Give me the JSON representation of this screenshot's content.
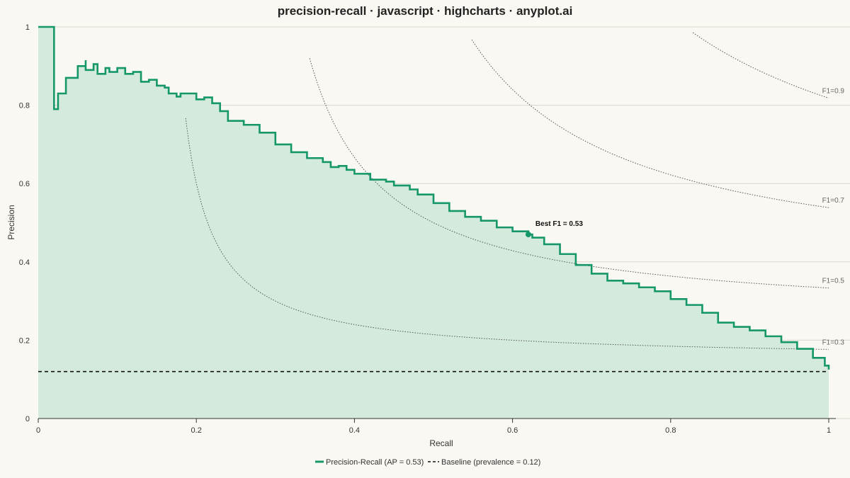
{
  "chart_data": {
    "type": "line",
    "title": "precision-recall · javascript · highcharts · anyplot.ai",
    "xlabel": "Recall",
    "ylabel": "Precision",
    "xlim": [
      0,
      1
    ],
    "ylim": [
      0,
      1
    ],
    "x_ticks": [
      "0",
      "0.2",
      "0.4",
      "0.6",
      "0.8",
      "1"
    ],
    "y_ticks": [
      "0",
      "0.2",
      "0.4",
      "0.6",
      "0.8",
      "1"
    ],
    "grid": "horizontal",
    "legend_position": "bottom-center",
    "colors": {
      "curve": "#15976a",
      "fill": "#d3eadc",
      "baseline": "#111111",
      "iso": "#555555",
      "background": "#faf8f2"
    },
    "series": [
      {
        "name": "Precision-Recall (AP = 0.53)",
        "points": [
          [
            0,
            1
          ],
          [
            0.02,
            1
          ],
          [
            0.02,
            0.79
          ],
          [
            0.025,
            0.83
          ],
          [
            0.035,
            0.87
          ],
          [
            0.05,
            0.9
          ],
          [
            0.06,
            0.915
          ],
          [
            0.06,
            0.89
          ],
          [
            0.07,
            0.905
          ],
          [
            0.075,
            0.88
          ],
          [
            0.085,
            0.895
          ],
          [
            0.09,
            0.885
          ],
          [
            0.1,
            0.895
          ],
          [
            0.11,
            0.88
          ],
          [
            0.12,
            0.885
          ],
          [
            0.13,
            0.86
          ],
          [
            0.14,
            0.865
          ],
          [
            0.15,
            0.85
          ],
          [
            0.16,
            0.845
          ],
          [
            0.165,
            0.83
          ],
          [
            0.175,
            0.822
          ],
          [
            0.18,
            0.83
          ],
          [
            0.2,
            0.815
          ],
          [
            0.21,
            0.82
          ],
          [
            0.22,
            0.805
          ],
          [
            0.23,
            0.785
          ],
          [
            0.24,
            0.76
          ],
          [
            0.26,
            0.75
          ],
          [
            0.28,
            0.73
          ],
          [
            0.3,
            0.7
          ],
          [
            0.32,
            0.68
          ],
          [
            0.34,
            0.665
          ],
          [
            0.36,
            0.655
          ],
          [
            0.37,
            0.642
          ],
          [
            0.38,
            0.645
          ],
          [
            0.39,
            0.635
          ],
          [
            0.4,
            0.625
          ],
          [
            0.42,
            0.61
          ],
          [
            0.44,
            0.605
          ],
          [
            0.45,
            0.595
          ],
          [
            0.47,
            0.585
          ],
          [
            0.48,
            0.572
          ],
          [
            0.5,
            0.55
          ],
          [
            0.52,
            0.53
          ],
          [
            0.54,
            0.515
          ],
          [
            0.56,
            0.505
          ],
          [
            0.58,
            0.488
          ],
          [
            0.6,
            0.478
          ],
          [
            0.62,
            0.47
          ],
          [
            0.625,
            0.462
          ],
          [
            0.64,
            0.445
          ],
          [
            0.66,
            0.42
          ],
          [
            0.68,
            0.392
          ],
          [
            0.7,
            0.37
          ],
          [
            0.72,
            0.352
          ],
          [
            0.74,
            0.345
          ],
          [
            0.76,
            0.335
          ],
          [
            0.78,
            0.325
          ],
          [
            0.8,
            0.305
          ],
          [
            0.82,
            0.29
          ],
          [
            0.84,
            0.27
          ],
          [
            0.86,
            0.245
          ],
          [
            0.88,
            0.234
          ],
          [
            0.9,
            0.225
          ],
          [
            0.92,
            0.21
          ],
          [
            0.94,
            0.195
          ],
          [
            0.96,
            0.178
          ],
          [
            0.98,
            0.155
          ],
          [
            0.995,
            0.135
          ],
          [
            1,
            0.125
          ]
        ]
      },
      {
        "name": "Baseline (prevalence = 0.12)",
        "value": 0.12
      }
    ],
    "iso_f1": [
      {
        "f1": 0.3,
        "label": "F1=0.3"
      },
      {
        "f1": 0.5,
        "label": "F1=0.5"
      },
      {
        "f1": 0.7,
        "label": "F1=0.7"
      },
      {
        "f1": 0.9,
        "label": "F1=0.9"
      }
    ],
    "best_point": {
      "recall": 0.62,
      "precision": 0.47,
      "label": "Best F1 = 0.53"
    }
  }
}
